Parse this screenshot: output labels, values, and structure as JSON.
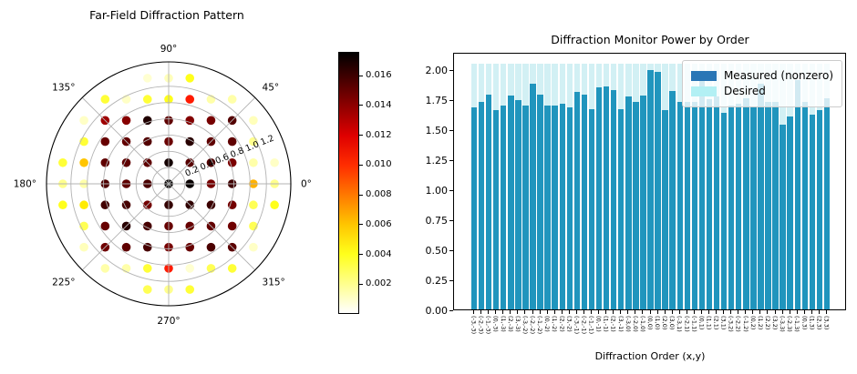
{
  "chart_data": [
    {
      "type": "scatter",
      "coord": "polar",
      "title": "Far-Field Diffraction Pattern",
      "angle_labels": [
        "0°",
        "45°",
        "90°",
        "135°",
        "180°",
        "225°",
        "270°",
        "315°"
      ],
      "radial_ticks": [
        0.2,
        0.4,
        0.6,
        0.8,
        1.0,
        1.2
      ],
      "r_max": 1.5,
      "order_spacing": 0.26,
      "colormap": "hot_r",
      "vmax": 0.0176,
      "colorbar_ticks": [
        "0.002",
        "0.004",
        "0.006",
        "0.008",
        "0.010",
        "0.012",
        "0.014",
        "0.016"
      ],
      "points": [
        [
          -3,
          -3,
          0.0148
        ],
        [
          -2,
          -3,
          0.0152
        ],
        [
          -1,
          -3,
          0.0158
        ],
        [
          0,
          -3,
          0.0146
        ],
        [
          1,
          -3,
          0.015
        ],
        [
          2,
          -3,
          0.0157
        ],
        [
          3,
          -3,
          0.0153
        ],
        [
          -3,
          -2,
          0.015
        ],
        [
          -2,
          -2,
          0.0166
        ],
        [
          -1,
          -2,
          0.0158
        ],
        [
          0,
          -2,
          0.015
        ],
        [
          1,
          -2,
          0.015
        ],
        [
          2,
          -2,
          0.0151
        ],
        [
          3,
          -2,
          0.0148
        ],
        [
          -3,
          -1,
          0.0159
        ],
        [
          -2,
          -1,
          0.0158
        ],
        [
          -1,
          -1,
          0.0147
        ],
        [
          0,
          -1,
          0.0163
        ],
        [
          1,
          -1,
          0.0164
        ],
        [
          2,
          -1,
          0.0161
        ],
        [
          3,
          -1,
          0.0147
        ],
        [
          -3,
          0,
          0.0156
        ],
        [
          -2,
          0,
          0.0152
        ],
        [
          -1,
          0,
          0.0157
        ],
        [
          0,
          0,
          0.0175
        ],
        [
          1,
          0,
          0.0174
        ],
        [
          2,
          0,
          0.0146
        ],
        [
          3,
          0,
          0.016
        ],
        [
          -3,
          1,
          0.0152
        ],
        [
          -2,
          1,
          0.0152
        ],
        [
          -1,
          1,
          0.0152
        ],
        [
          0,
          1,
          0.0171
        ],
        [
          1,
          1,
          0.0154
        ],
        [
          2,
          1,
          0.0156
        ],
        [
          3,
          1,
          0.0145
        ],
        [
          -3,
          2,
          0.015
        ],
        [
          -2,
          2,
          0.0151
        ],
        [
          -1,
          2,
          0.0155
        ],
        [
          0,
          2,
          0.0149
        ],
        [
          1,
          2,
          0.0166
        ],
        [
          2,
          2,
          0.0152
        ],
        [
          3,
          2,
          0.0152
        ],
        [
          -3,
          3,
          0.0136
        ],
        [
          -2,
          3,
          0.0142
        ],
        [
          -1,
          3,
          0.0168
        ],
        [
          0,
          3,
          0.0152
        ],
        [
          1,
          3,
          0.0143
        ],
        [
          2,
          3,
          0.0146
        ],
        [
          3,
          3,
          0.0155
        ],
        [
          4,
          0,
          0.0065
        ],
        [
          5,
          0,
          0.002
        ],
        [
          -4,
          0,
          0.0015
        ],
        [
          -5,
          0,
          0.002
        ],
        [
          0,
          4,
          0.004
        ],
        [
          0,
          -4,
          0.0105
        ],
        [
          0,
          5,
          0.0012
        ],
        [
          0,
          -5,
          0.002
        ],
        [
          4,
          1,
          0.0015
        ],
        [
          4,
          -1,
          0.003
        ],
        [
          -4,
          1,
          0.006
        ],
        [
          -4,
          -1,
          0.005
        ],
        [
          1,
          4,
          0.0105
        ],
        [
          -1,
          4,
          0.0035
        ],
        [
          1,
          -4,
          0.0008
        ],
        [
          -1,
          -4,
          0.0035
        ],
        [
          4,
          2,
          0.002
        ],
        [
          4,
          -2,
          0.003
        ],
        [
          -4,
          2,
          0.0035
        ],
        [
          -4,
          -2,
          0.003
        ],
        [
          2,
          4,
          0.0015
        ],
        [
          -2,
          4,
          0.001
        ],
        [
          2,
          -4,
          0.003
        ],
        [
          -2,
          -4,
          0.0015
        ],
        [
          4,
          3,
          0.0012
        ],
        [
          4,
          -3,
          0.001
        ],
        [
          -4,
          3,
          0.001
        ],
        [
          -4,
          -3,
          0.0012
        ],
        [
          3,
          4,
          0.0015
        ],
        [
          -3,
          4,
          0.0035
        ],
        [
          3,
          -4,
          0.0035
        ],
        [
          -3,
          -4,
          0.0015
        ],
        [
          5,
          1,
          0.001
        ],
        [
          5,
          -1,
          0.004
        ],
        [
          -5,
          1,
          0.0035
        ],
        [
          -5,
          -1,
          0.004
        ],
        [
          1,
          5,
          0.004
        ],
        [
          -1,
          5,
          0.0008
        ],
        [
          1,
          -5,
          0.0035
        ],
        [
          -1,
          -5,
          0.003
        ]
      ]
    },
    {
      "type": "bar",
      "title": "Diffraction Monitor Power by Order",
      "xlabel": "Diffraction Order (x,y)",
      "ylim": [
        0,
        2.145
      ],
      "ytick_labels": [
        "0.00",
        "0.25",
        "0.50",
        "0.75",
        "1.00",
        "1.25",
        "1.50",
        "1.75",
        "2.00"
      ],
      "desired_value": 2.05,
      "legend_position": "upper right",
      "categories": [
        "(-3,-3)",
        "(-2,-3)",
        "(-1,-3)",
        "(0,-3)",
        "(1,-3)",
        "(2,-3)",
        "(3,-3)",
        "(-3,-2)",
        "(-2,-2)",
        "(-1,-2)",
        "(0,-2)",
        "(1,-2)",
        "(2,-2)",
        "(3,-2)",
        "(-3,-1)",
        "(-2,-1)",
        "(-1,-1)",
        "(0,-1)",
        "(1,-1)",
        "(2,-1)",
        "(3,-1)",
        "(-3,0)",
        "(-2,0)",
        "(-1,0)",
        "(0,0)",
        "(1,0)",
        "(2,0)",
        "(3,0)",
        "(-3,1)",
        "(-2,1)",
        "(-1,1)",
        "(0,1)",
        "(1,1)",
        "(2,1)",
        "(3,1)",
        "(-3,2)",
        "(-2,2)",
        "(-1,2)",
        "(0,2)",
        "(1,2)",
        "(2,2)",
        "(3,2)",
        "(-3,3)",
        "(-2,3)",
        "(-1,3)",
        "(0,3)",
        "(1,3)",
        "(2,3)",
        "(3,3)"
      ],
      "series": [
        {
          "name": "Measured (nonzero)",
          "color": "#2095bd",
          "legend_color": "#2a76b6",
          "values": [
            1.68,
            1.73,
            1.79,
            1.66,
            1.7,
            1.78,
            1.74,
            1.7,
            1.88,
            1.79,
            1.7,
            1.7,
            1.71,
            1.68,
            1.81,
            1.79,
            1.67,
            1.85,
            1.86,
            1.83,
            1.67,
            1.77,
            1.73,
            1.78,
            1.99,
            1.98,
            1.66,
            1.82,
            1.73,
            1.73,
            1.73,
            1.94,
            1.75,
            1.77,
            1.64,
            1.7,
            1.71,
            1.76,
            1.69,
            1.88,
            1.73,
            1.73,
            1.54,
            1.61,
            1.91,
            1.73,
            1.62,
            1.66,
            1.76
          ]
        },
        {
          "name": "Desired",
          "color": "#d2f0f4",
          "legend_color": "#b2f0f4",
          "values_constant": 2.05
        }
      ]
    }
  ]
}
